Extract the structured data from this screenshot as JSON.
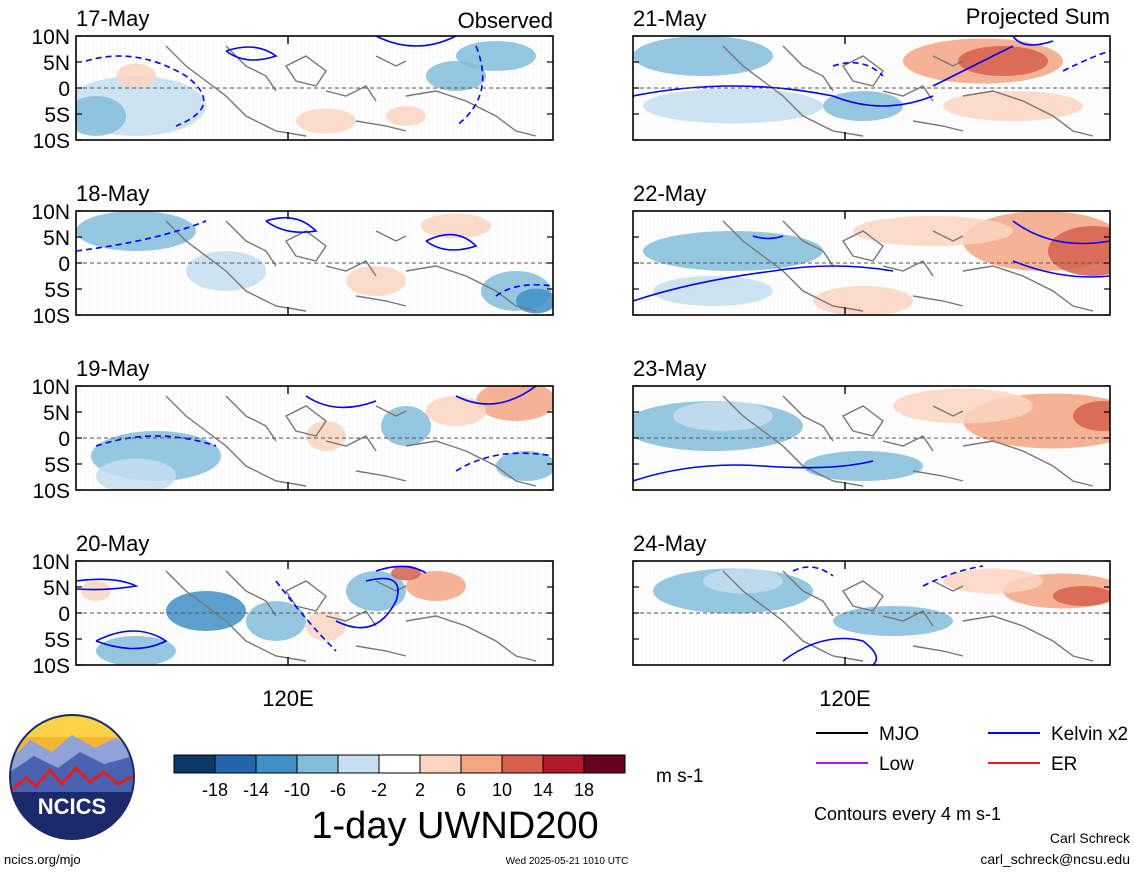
{
  "headers": {
    "left": "Observed",
    "right": "Projected Sum"
  },
  "panels": [
    {
      "date": "17-May"
    },
    {
      "date": "18-May"
    },
    {
      "date": "19-May"
    },
    {
      "date": "20-May"
    },
    {
      "date": "21-May"
    },
    {
      "date": "22-May"
    },
    {
      "date": "23-May"
    },
    {
      "date": "24-May"
    }
  ],
  "lat_ticks": [
    "10N",
    "5N",
    "0",
    "5S",
    "10S"
  ],
  "lon_tick": "120E",
  "colorbar": {
    "title": "1-day UWND200",
    "units": "m s-1",
    "labels": [
      "-18",
      "-14",
      "-10",
      "-6",
      "-2",
      "2",
      "6",
      "10",
      "14",
      "18"
    ],
    "colors": [
      "#0b3a66",
      "#2166ac",
      "#3f8fc8",
      "#84bddc",
      "#c5def0",
      "#ffffff",
      "#fcd5c2",
      "#f4a582",
      "#d6604d",
      "#b2182b",
      "#67001f"
    ]
  },
  "legend": {
    "items": [
      {
        "label": "MJO",
        "color": "#000000"
      },
      {
        "label": "Kelvin x2",
        "color": "#0000ff"
      },
      {
        "label": "Low",
        "color": "#a020f0"
      },
      {
        "label": "ER",
        "color": "#e02020"
      }
    ],
    "contours_note": "Contours every 4 m s-1"
  },
  "logo_text": "NCICS",
  "footer": {
    "url": "ncics.org/mjo",
    "timestamp": "Wed 2025-05-21 1010 UTC",
    "author": "Carl Schreck",
    "email": "carl_schreck@ncsu.edu"
  },
  "chart_data": {
    "type": "heatmap",
    "variable": "1-day UWND200",
    "units": "m s-1",
    "y_range": [
      "10S",
      "10N"
    ],
    "x_tick": "120E",
    "color_levels": [
      -18,
      -14,
      -10,
      -6,
      -2,
      2,
      6,
      10,
      14,
      18
    ],
    "contour_interval": 4
  }
}
